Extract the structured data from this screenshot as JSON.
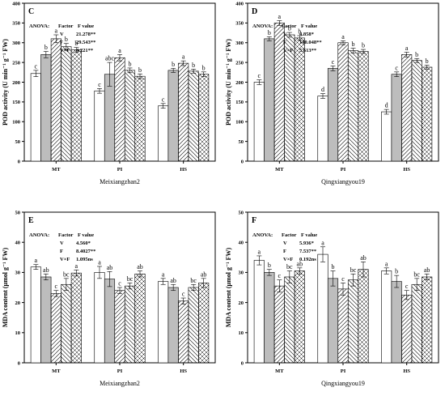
{
  "chart_data": [
    {
      "type": "bar",
      "panel": "C",
      "cultivar": "Meixiangzhan2",
      "ylabel": "POD activity (U min⁻¹ g⁻¹ FW)",
      "ylim": [
        0,
        400
      ],
      "yticks": [
        "0",
        "50",
        "100",
        "150",
        "200",
        "250",
        "300",
        "350",
        "400"
      ],
      "categories": [
        "MT",
        "PI",
        "HS"
      ],
      "anova": {
        "header": [
          "ANOVA:",
          "Factor",
          "F value"
        ],
        "rows": [
          [
            "V",
            "21.278**"
          ],
          [
            "F",
            "29.543**"
          ],
          [
            "V×F",
            "4.221**"
          ]
        ]
      },
      "series": [
        {
          "values": [
            222,
            178,
            140
          ],
          "errors": [
            8,
            6,
            6
          ],
          "letters": [
            "c",
            "c",
            "c"
          ]
        },
        {
          "values": [
            270,
            220,
            230
          ],
          "errors": [
            8,
            30,
            5
          ],
          "letters": [
            "b",
            "abc",
            "b"
          ]
        },
        {
          "values": [
            310,
            262,
            248
          ],
          "errors": [
            10,
            8,
            6
          ],
          "letters": [
            "a",
            "a",
            "a"
          ]
        },
        {
          "values": [
            290,
            230,
            228
          ],
          "errors": [
            8,
            6,
            5
          ],
          "letters": [
            "b",
            "b",
            "b"
          ]
        },
        {
          "values": [
            282,
            215,
            220
          ],
          "errors": [
            6,
            6,
            6
          ],
          "letters": [
            "b",
            "b",
            "b"
          ]
        }
      ]
    },
    {
      "type": "bar",
      "panel": "D",
      "cultivar": "Qingxiangyou19",
      "ylabel": "POD activity (U min⁻¹ g⁻¹ FW)",
      "ylim": [
        0,
        400
      ],
      "yticks": [
        "0",
        "50",
        "100",
        "150",
        "200",
        "250",
        "300",
        "350",
        "400"
      ],
      "categories": [
        "MT",
        "PI",
        "HS"
      ],
      "anova": {
        "header": [
          "ANOVA:",
          "Factor",
          "F value"
        ],
        "rows": [
          [
            "V",
            "4.858*"
          ],
          [
            "F",
            "140.048**"
          ],
          [
            "V×F",
            "5.613**"
          ]
        ]
      },
      "series": [
        {
          "values": [
            200,
            165,
            125
          ],
          "errors": [
            6,
            6,
            6
          ],
          "letters": [
            "c",
            "d",
            "d"
          ]
        },
        {
          "values": [
            310,
            235,
            220
          ],
          "errors": [
            5,
            6,
            6
          ],
          "letters": [
            "b",
            "c",
            "c"
          ]
        },
        {
          "values": [
            350,
            300,
            270
          ],
          "errors": [
            6,
            5,
            6
          ],
          "letters": [
            "a",
            "a",
            "a"
          ]
        },
        {
          "values": [
            320,
            280,
            255
          ],
          "errors": [
            6,
            6,
            5
          ],
          "letters": [
            "b",
            "b",
            "b"
          ]
        },
        {
          "values": [
            312,
            278,
            238
          ],
          "errors": [
            6,
            5,
            5
          ],
          "letters": [
            "b",
            "b",
            "b"
          ]
        }
      ]
    },
    {
      "type": "bar",
      "panel": "E",
      "cultivar": "Meixiangzhan2",
      "ylabel": "MDA content (μmol g⁻¹ FW)",
      "ylim": [
        0,
        50
      ],
      "yticks": [
        "0",
        "10",
        "20",
        "30",
        "40",
        "50"
      ],
      "categories": [
        "MT",
        "PI",
        "HS"
      ],
      "anova": {
        "header": [
          "ANOVA:",
          "Factor",
          "F value"
        ],
        "rows": [
          [
            "V",
            "4.560*"
          ],
          [
            "F",
            "8.4027**"
          ],
          [
            "V×F",
            "1.095ns"
          ]
        ]
      },
      "series": [
        {
          "values": [
            31.8,
            30.0,
            27.0
          ],
          "errors": [
            0.8,
            2.0,
            1.0
          ],
          "letters": [
            "a",
            "a",
            "a"
          ]
        },
        {
          "values": [
            28.5,
            27.8,
            25.0
          ],
          "errors": [
            1.0,
            2.5,
            1.0
          ],
          "letters": [
            "ab",
            "ab",
            "ab"
          ]
        },
        {
          "values": [
            23.0,
            24.0,
            20.5
          ],
          "errors": [
            1.0,
            1.0,
            1.0
          ],
          "letters": [
            "c",
            "c",
            "c"
          ]
        },
        {
          "values": [
            26.0,
            25.5,
            25.0
          ],
          "errors": [
            2.0,
            1.0,
            1.0
          ],
          "letters": [
            "bc",
            "bc",
            "bc"
          ]
        },
        {
          "values": [
            29.8,
            29.5,
            26.5
          ],
          "errors": [
            1.0,
            1.0,
            1.5
          ],
          "letters": [
            "a",
            "ab",
            "ab"
          ]
        }
      ]
    },
    {
      "type": "bar",
      "panel": "F",
      "cultivar": "Qingxiangyou19",
      "ylabel": "MDA content (μmol g⁻¹ FW)",
      "ylim": [
        0,
        50
      ],
      "yticks": [
        "0",
        "10",
        "20",
        "30",
        "40",
        "50"
      ],
      "categories": [
        "MT",
        "PI",
        "HS"
      ],
      "anova": {
        "header": [
          "ANOVA:",
          "Factor",
          "F value"
        ],
        "rows": [
          [
            "V",
            "5.936*"
          ],
          [
            "F",
            "7.537**"
          ],
          [
            "V×F",
            "0.192ns"
          ]
        ]
      },
      "series": [
        {
          "values": [
            34.0,
            36.0,
            30.5
          ],
          "errors": [
            1.5,
            2.5,
            1.0
          ],
          "letters": [
            "a",
            "a",
            "a"
          ]
        },
        {
          "values": [
            30.0,
            28.0,
            27.0
          ],
          "errors": [
            1.0,
            2.5,
            2.0
          ],
          "letters": [
            "b",
            "b",
            "b"
          ]
        },
        {
          "values": [
            25.5,
            24.5,
            22.5
          ],
          "errors": [
            2.0,
            2.0,
            1.5
          ],
          "letters": [
            "c",
            "c",
            "c"
          ]
        },
        {
          "values": [
            28.5,
            27.5,
            26.0
          ],
          "errors": [
            2.0,
            2.0,
            2.0
          ],
          "letters": [
            "bc",
            "bc",
            "bc"
          ]
        },
        {
          "values": [
            30.5,
            31.0,
            28.5
          ],
          "errors": [
            1.0,
            2.5,
            1.0
          ],
          "letters": [
            "ab",
            "ab",
            "ab"
          ]
        }
      ]
    }
  ]
}
